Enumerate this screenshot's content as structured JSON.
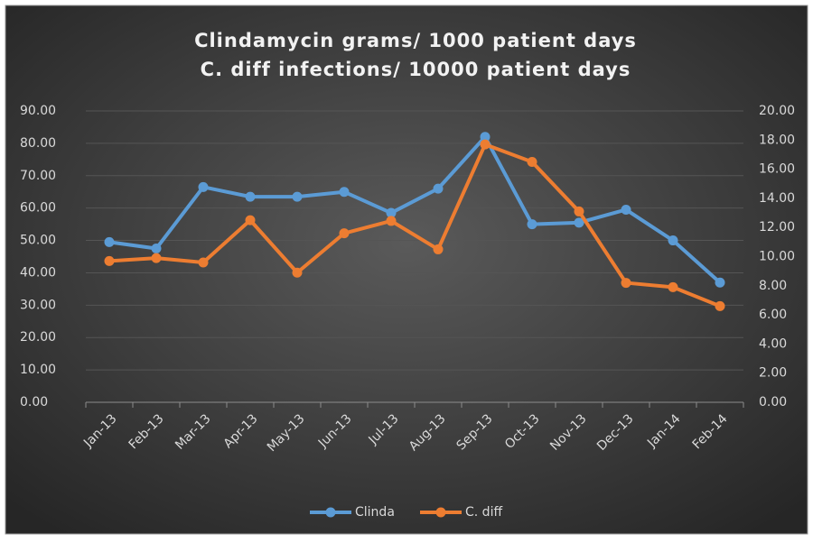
{
  "chart_data": {
    "type": "line",
    "title": [
      "Clindamycin grams/ 1000 patient days",
      "C. diff infections/ 10000 patient days"
    ],
    "categories": [
      "Jan-13",
      "Feb-13",
      "Mar-13",
      "Apr-13",
      "May-13",
      "Jun-13",
      "Jul-13",
      "Aug-13",
      "Sep-13",
      "Oct-13",
      "Nov-13",
      "Dec-13",
      "Jan-14",
      "Feb-14"
    ],
    "series": [
      {
        "name": "Clinda",
        "color": "#5b9bd5",
        "values": [
          49.5,
          47.5,
          66.5,
          63.5,
          63.5,
          65,
          58.5,
          66,
          82,
          55,
          55.5,
          59.5,
          50,
          37
        ]
      },
      {
        "name": "C. diff",
        "color": "#ed7d31",
        "axis": "y2",
        "values": [
          9.7,
          9.9,
          9.6,
          12.5,
          8.9,
          11.6,
          12.45,
          10.5,
          17.7,
          16.5,
          13.1,
          8.2,
          7.9,
          6.6
        ]
      }
    ],
    "ylim": [
      0,
      90
    ],
    "yticks": [
      {
        "value": 0,
        "label": "0.00"
      },
      {
        "value": 10,
        "label": "10.00"
      },
      {
        "value": 20,
        "label": "20.00"
      },
      {
        "value": 30,
        "label": "30.00"
      },
      {
        "value": 40,
        "label": "40.00"
      },
      {
        "value": 50,
        "label": "50.00"
      },
      {
        "value": 60,
        "label": "60.00"
      },
      {
        "value": 70,
        "label": "70.00"
      },
      {
        "value": 80,
        "label": "80.00"
      },
      {
        "value": 90,
        "label": "90.00"
      }
    ],
    "y2lim": [
      0,
      20
    ],
    "y2ticks": [
      {
        "value": 0,
        "label": "0.00"
      },
      {
        "value": 2,
        "label": "2.00"
      },
      {
        "value": 4,
        "label": "4.00"
      },
      {
        "value": 6,
        "label": "6.00"
      },
      {
        "value": 8,
        "label": "8.00"
      },
      {
        "value": 10,
        "label": "10.00"
      },
      {
        "value": 12,
        "label": "12.00"
      },
      {
        "value": 14,
        "label": "14.00"
      },
      {
        "value": 16,
        "label": "16.00"
      },
      {
        "value": 18,
        "label": "18.00"
      },
      {
        "value": 20,
        "label": "20.00"
      }
    ],
    "grid": true,
    "legend": "bottom"
  }
}
